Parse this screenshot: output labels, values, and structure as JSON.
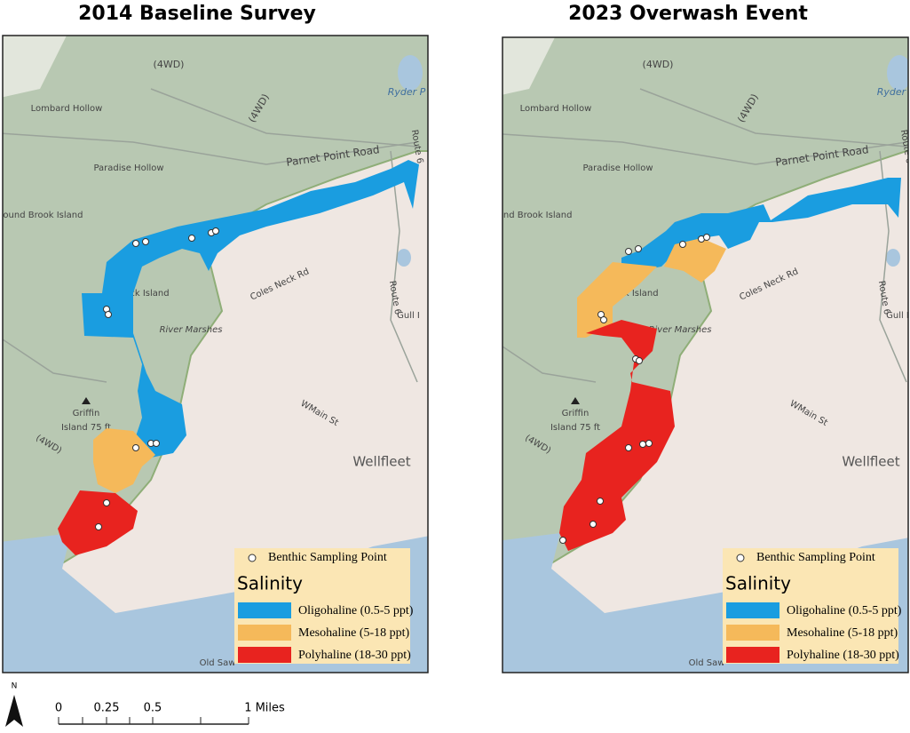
{
  "panels": [
    {
      "title": "2014 Baseline Survey"
    },
    {
      "title": "2023 Overwash Event"
    }
  ],
  "map_labels": [
    "(4WD)",
    "Ryder P",
    "Lombard Hollow",
    "(4WD)",
    "Parnet Point Road",
    "Route 6",
    "Paradise Hollow",
    "Bound Brook Island",
    "errick Island",
    "River Marshes",
    "Coles Neck Rd",
    "Gull I",
    "Route 6",
    "Griffin",
    "Island 75 ft",
    "WMain St",
    "(4WD)",
    "Wellfleet",
    "Old Saw"
  ],
  "legend": {
    "point_label": "Benthic Sampling Point",
    "title": "Salinity",
    "classes": [
      {
        "label": "Oligohaline (0.5-5 ppt)",
        "color": "#1a9de0"
      },
      {
        "label": "Mesohaline (5-18 ppt)",
        "color": "#f5b95a"
      },
      {
        "label": "Polyhaline (18-30 ppt)",
        "color": "#e8231f"
      }
    ]
  },
  "scale_bar": {
    "north": "N",
    "ticks": [
      "0",
      "0.25",
      "0.5",
      "1 Miles"
    ]
  }
}
